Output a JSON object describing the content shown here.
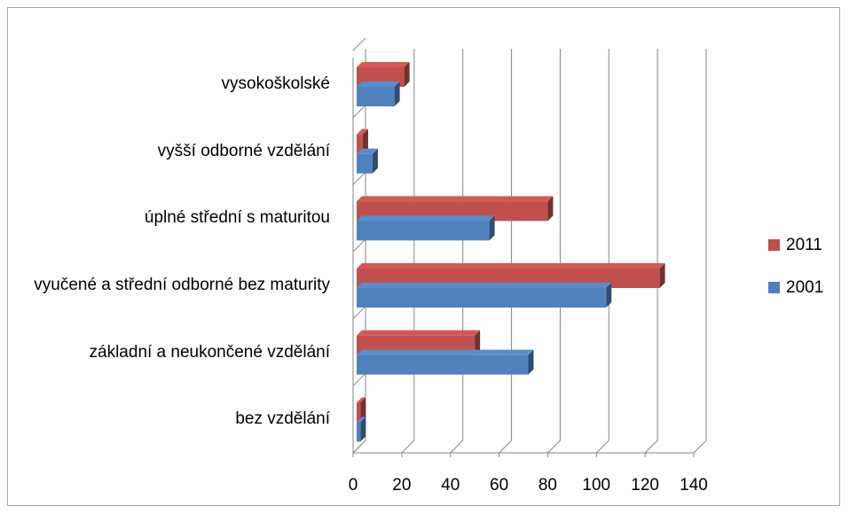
{
  "chart_data": {
    "type": "bar3d_horizontal",
    "categories": [
      "bez vzdělání",
      "základní a neukončené vzdělání",
      "vyučené a střední odborné bez maturity",
      "úplné střední s maturitou",
      "vyšší odborné vzdělání",
      "vysokoškolské"
    ],
    "series": [
      {
        "name": "2011",
        "color": "#c0504d",
        "values": [
          3,
          50,
          126,
          80,
          4,
          21
        ]
      },
      {
        "name": "2001",
        "color": "#4f81bd",
        "values": [
          3,
          72,
          104,
          56,
          8,
          17
        ]
      }
    ],
    "xlim": [
      0,
      140
    ],
    "xticks": [
      0,
      20,
      40,
      60,
      80,
      100,
      120,
      140
    ],
    "grid": true,
    "legend": "right"
  }
}
